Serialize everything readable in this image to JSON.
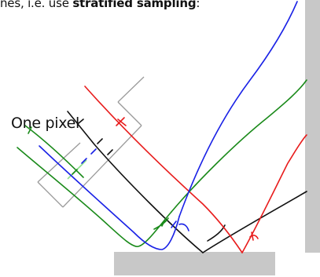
{
  "caption": {
    "prefix": "nes, i.e. use ",
    "emphasis": "stratified sampling",
    "suffix": ":"
  },
  "label": "One pixel",
  "colors": {
    "red": "#e81c1c",
    "green": "#1a8a1a",
    "blue": "#1a22e6",
    "black": "#111111",
    "surface": "#c8c8c8",
    "pixel_box": "#9a9a9a",
    "pixel_inner": "#8ee08e"
  }
}
